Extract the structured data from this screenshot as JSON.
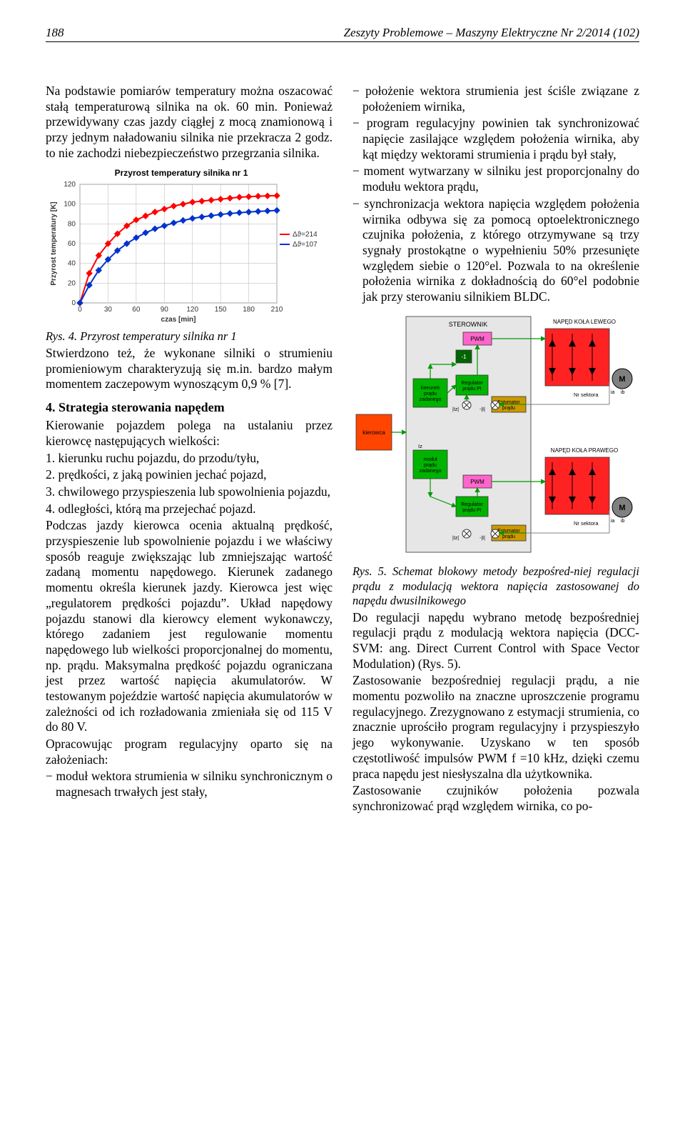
{
  "header": {
    "page_number": "188",
    "journal": "Zeszyty Problemowe – Maszyny Elektryczne Nr 2/2014 (102)"
  },
  "left": {
    "p1": "Na podstawie pomiarów temperatury można oszacować stałą temperaturową silnika na ok. 60 min. Ponieważ przewidywany czas jazdy ciągłej z mocą znamionową i przy jednym naładowaniu silnika nie przekracza 2 godz. to nie zachodzi niebezpieczeństwo przegrzania silnika.",
    "chart": {
      "title": "Przyrost temperatury silnika nr 1",
      "type": "line",
      "xlabel": "czas [min]",
      "ylabel": "Przyrost temperatury [K]",
      "xlim": [
        0,
        210
      ],
      "ylim": [
        0,
        120
      ],
      "xtick_step": 30,
      "ytick_step": 20,
      "background_color": "#ffffff",
      "grid_color": "#c0c0c0",
      "border_color": "#808080",
      "series": [
        {
          "name": "Δϑ=214",
          "color": "#ff0000",
          "marker": "diamond",
          "marker_size": 4,
          "line_width": 2,
          "x": [
            0,
            10,
            20,
            30,
            40,
            50,
            60,
            70,
            80,
            90,
            100,
            110,
            120,
            130,
            140,
            150,
            160,
            170,
            180,
            190,
            200,
            210
          ],
          "y": [
            0,
            30,
            48,
            60,
            70,
            78,
            84,
            88,
            92,
            95,
            98,
            100,
            102,
            103,
            104,
            105,
            106,
            107,
            107.5,
            108,
            108.3,
            108.5
          ]
        },
        {
          "name": "Δϑ=107",
          "color": "#0033cc",
          "marker": "diamond",
          "marker_size": 4,
          "line_width": 2,
          "x": [
            0,
            10,
            20,
            30,
            40,
            50,
            60,
            70,
            80,
            90,
            100,
            110,
            120,
            130,
            140,
            150,
            160,
            170,
            180,
            190,
            200,
            210
          ],
          "y": [
            0,
            18,
            33,
            44,
            53,
            60,
            66,
            71,
            75,
            78,
            81,
            83.5,
            85.5,
            87,
            88.3,
            89.5,
            90.5,
            91.3,
            92,
            92.6,
            93.1,
            93.6
          ]
        }
      ]
    },
    "fig4": "Rys. 4. Przyrost temperatury silnika nr 1",
    "p2": "Stwierdzono też, że wykonane silniki o strumieniu promieniowym charakteryzują się m.in. bardzo małym momentem zaczepowym wynoszącym 0,9 % [7].",
    "h4": "4. Strategia sterowania napędem",
    "p3": "Kierowanie pojazdem polega na ustalaniu przez kierowcę następujących wielkości:",
    "li1": "1. kierunku ruchu pojazdu, do przodu/tyłu,",
    "li2": "2. prędkości, z jaką powinien jechać pojazd,",
    "li3": "3. chwilowego przyspieszenia lub spowolnienia pojazdu,",
    "li4": "4. odległości, którą ma przejechać pojazd.",
    "p4": "Podczas jazdy kierowca ocenia aktualną prędkość, przyspieszenie lub spowolnienie pojazdu i we właściwy sposób reaguje zwiększając lub zmniejszając wartość zadaną momentu napędowego. Kierunek zadanego momentu określa kierunek jazdy. Kierowca jest więc „regulatorem prędkości pojazdu”. Układ napędowy pojazdu stanowi dla kierowcy element wykonawczy, którego zadaniem jest regulowanie momentu napędowego lub wielkości proporcjonalnej do momentu, np. prądu. Maksymalna prędkość pojazdu ograniczana jest przez wartość napięcia akumulatorów. W testowanym pojeździe wartość napięcia akumulatorów w zależności od ich rozładowania zmieniała się od 115 V do 80 V.",
    "p5": "Opracowując program regulacyjny oparto się na założeniach:",
    "b1": "− moduł wektora strumienia w silniku synchronicznym o magnesach trwałych jest stały,"
  },
  "right": {
    "b2": "− położenie wektora strumienia jest ściśle związane z położeniem wirnika,",
    "b3": "− program regulacyjny powinien tak synchronizować napięcie zasilające względem położenia wirnika, aby kąt między wektorami strumienia i prądu był stały,",
    "b4": "− moment wytwarzany w silniku jest proporcjonalny do modułu wektora prądu,",
    "b5": "− synchronizacja wektora napięcia względem położenia wirnika odbywa się za pomocą optoelektronicznego czujnika położenia, z którego otrzymywane są trzy sygnały prostokątne o wypełnieniu 50% przesunięte względem siebie o 120°el. Pozwala to na określenie położenia wirnika z dokładnością do 60°el podobnie jak przy sterowaniu silnikiem BLDC.",
    "diagram": {
      "type": "block-diagram",
      "background": "#ffffff",
      "blocks": {
        "kierowca": {
          "label": "kierowca",
          "color": "#ff4500",
          "text_color": "#000"
        },
        "sterownik": {
          "label": "STEROWNIK",
          "color": "#e6e6e6",
          "text_color": "#000"
        },
        "kierunek": {
          "label": "kierunek\\nprądu\\nzadanego",
          "color": "#00b300",
          "text_color": "#000"
        },
        "modul": {
          "label": "moduł\\nprądu\\nzadanego",
          "color": "#00b300",
          "text_color": "#000"
        },
        "minus1": {
          "label": "-1",
          "color": "#006400",
          "text_color": "#fff"
        },
        "reg1": {
          "label": "Regulator\\nprądu PI",
          "color": "#00b300",
          "text_color": "#000"
        },
        "reg2": {
          "label": "Regulator\\nprądu PI",
          "color": "#00b300",
          "text_color": "#000"
        },
        "pwm1": {
          "label": "PWM",
          "color": "#ff66cc",
          "text_color": "#000"
        },
        "pwm2": {
          "label": "PWM",
          "color": "#ff66cc",
          "text_color": "#000"
        },
        "est1": {
          "label": "Estymator\\nprądu",
          "color": "#cc9900",
          "text_color": "#000"
        },
        "est2": {
          "label": "Estymator\\nprądu",
          "color": "#cc9900",
          "text_color": "#000"
        },
        "inv1": {
          "label": "",
          "color": "#ff2222",
          "bridge": true
        },
        "inv2": {
          "label": "",
          "color": "#ff2222",
          "bridge": true
        },
        "motor1": {
          "label": "M",
          "color": "#808080"
        },
        "motor2": {
          "label": "M",
          "color": "#808080"
        }
      },
      "labels": {
        "top_right": "NAPĘD KOŁA LEWEGO",
        "bottom_right": "NAPĘD KOŁA PRAWEGO",
        "nr_sektora": "Nr sektora",
        "iz": "Iz",
        "iz_bracket": "|Iz|",
        "minus_i": "-|I|",
        "ia": "ia",
        "ib": "ib"
      },
      "arrow_color": "#009900",
      "thin_line_color": "#808080",
      "font_size": 8
    },
    "fig5": "Rys. 5. Schemat blokowy metody bezpośred-niej regulacji prądu z modulacją wektora napięcia zastosowanej do napędu dwusilnikowego",
    "p6": "Do regulacji napędu wybrano metodę bezpośredniej regulacji prądu z modulacją wektora napięcia (DCC-SVM: ang. Direct Current Control with Space Vector Modulation) (Rys. 5).",
    "p7": "Zastosowanie bezpośredniej regulacji prądu, a nie momentu pozwoliło na znaczne uproszczenie programu regulacyjnego. Zrezygnowano z estymacji strumienia, co znacznie uprościło program regulacyjny i przyspieszyło jego wykonywanie. Uzyskano w ten sposób częstotliwość impulsów PWM f =10 kHz, dzięki czemu praca napędu jest niesłyszalna dla użytkownika.",
    "p8": "Zastosowanie czujników położenia pozwala synchronizować prąd względem wirnika, co po-"
  }
}
